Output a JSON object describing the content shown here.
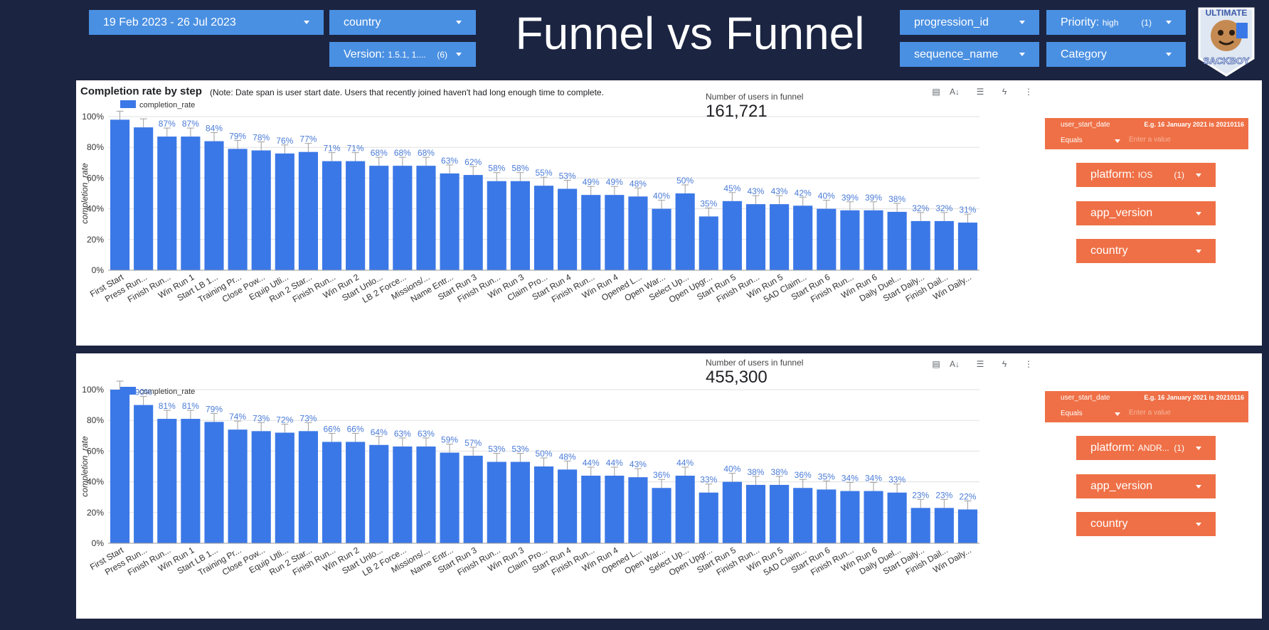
{
  "header": {
    "title": "Funnel vs Funnel",
    "date_range": "19 Feb 2023 - 26 Jul 2023",
    "country": "country",
    "version_label": "Version:",
    "version_value": "1.5.1, 1....",
    "version_count": "(6)",
    "progression_id": "progression_id",
    "sequence_name": "sequence_name",
    "priority_label": "Priority:",
    "priority_value": "high",
    "priority_count": "(1)",
    "category": "Category",
    "logo_text_1": "ULTIMATE",
    "logo_text_2": "SACKBOY"
  },
  "colors": {
    "background": "#1b2441",
    "blue_control": "#4a90e2",
    "bar": "#3b78e7",
    "orange_control": "#ef7046"
  },
  "panel1": {
    "title": "Completion rate by step",
    "note": "(Note: Date span is user start date. Users that recently joined haven't had long enough time to complete.",
    "users_label": "Number of users in funnel",
    "users_value": "161,721",
    "filter": {
      "field": "user_start_date",
      "hint": "E.g. 16 January 2021 is 20210116",
      "operator": "Equals",
      "placeholder": "Enter a value"
    },
    "platform_label": "platform:",
    "platform_value": "IOS",
    "platform_count": "(1)",
    "app_version": "app_version",
    "country": "country"
  },
  "panel2": {
    "users_label": "Number of users in funnel",
    "users_value": "455,300",
    "filter": {
      "field": "user_start_date",
      "hint": "E.g. 16 January 2021 is 20210116",
      "operator": "Equals",
      "placeholder": "Enter a value"
    },
    "platform_label": "platform:",
    "platform_value": "ANDR...",
    "platform_count": "(1)",
    "app_version": "app_version",
    "country": "country"
  },
  "chart_data": [
    {
      "type": "bar",
      "title": "",
      "ylabel": "completion_rate",
      "legend": [
        "completion_rate"
      ],
      "legend_position": "top-left",
      "ylim": [
        0,
        100
      ],
      "yticks": [
        "0%",
        "20%",
        "40%",
        "60%",
        "80%",
        "100%"
      ],
      "categories": [
        "First Start",
        "Press Run...",
        "Finish Run...",
        "Win Run 1",
        "Start LB 1...",
        "Training Pr...",
        "Close Pow...",
        "Equip Utli...",
        "Run 2 Star...",
        "Finish Run...",
        "Win Run 2",
        "Start Unlo...",
        "LB 2 Force...",
        "Missions/...",
        "Name Entr...",
        "Start Run 3",
        "Finish Run...",
        "Win Run 3",
        "Claim Pro...",
        "Start Run 4",
        "Finish Run...",
        "Win Run 4",
        "Opened L...",
        "Open War...",
        "Select Up...",
        "Open Upgr...",
        "Start Run 5",
        "Finish Run...",
        "Win Run 5",
        "5AD Claim...",
        "Start Run 6",
        "Finish Run...",
        "Win Run 6",
        "Daily Duel...",
        "Start Daily...",
        "Finish Dail...",
        "Win Daily..."
      ],
      "values": [
        98,
        93,
        87,
        87,
        84,
        79,
        78,
        76,
        77,
        71,
        71,
        68,
        68,
        68,
        63,
        62,
        58,
        58,
        55,
        53,
        49,
        49,
        48,
        40,
        50,
        35,
        45,
        43,
        43,
        42,
        40,
        39,
        39,
        38,
        32,
        32,
        31
      ],
      "labels": [
        "",
        "",
        "87%",
        "87%",
        "84%",
        "79%",
        "78%",
        "76%",
        "77%",
        "71%",
        "71%",
        "68%",
        "68%",
        "68%",
        "63%",
        "62%",
        "58%",
        "58%",
        "55%",
        "53%",
        "49%",
        "49%",
        "48%",
        "40%",
        "50%",
        "35%",
        "45%",
        "43%",
        "43%",
        "42%",
        "40%",
        "39%",
        "39%",
        "38%",
        "32%",
        "32%",
        "31%"
      ]
    },
    {
      "type": "bar",
      "title": "",
      "ylabel": "completion_rate",
      "legend": [
        "completion_rate"
      ],
      "legend_position": "top-left",
      "ylim": [
        0,
        100
      ],
      "yticks": [
        "0%",
        "20%",
        "40%",
        "60%",
        "80%",
        "100%"
      ],
      "categories": [
        "First Start",
        "Press Run...",
        "Finish Run...",
        "Win Run 1",
        "Start LB 1...",
        "Training Pr...",
        "Close Pow...",
        "Equip Utli...",
        "Run 2 Star...",
        "Finish Run...",
        "Win Run 2",
        "Start Unlo...",
        "LB 2 Force...",
        "Missions/...",
        "Name Entr...",
        "Start Run 3",
        "Finish Run...",
        "Win Run 3",
        "Claim Pro...",
        "Start Run 4",
        "Finish Run...",
        "Win Run 4",
        "Opened L...",
        "Open War...",
        "Select Up...",
        "Open Upgr...",
        "Start Run 5",
        "Finish Run...",
        "Win Run 5",
        "5AD Claim...",
        "Start Run 6",
        "Finish Run...",
        "Win Run 6",
        "Daily Duel...",
        "Start Daily...",
        "Finish Dail...",
        "Win Daily..."
      ],
      "values": [
        100,
        90,
        81,
        81,
        79,
        74,
        73,
        72,
        73,
        66,
        66,
        64,
        63,
        63,
        59,
        57,
        53,
        53,
        50,
        48,
        44,
        44,
        43,
        36,
        44,
        33,
        40,
        38,
        38,
        36,
        35,
        34,
        34,
        33,
        23,
        23,
        22
      ],
      "labels": [
        "",
        "90%",
        "81%",
        "81%",
        "79%",
        "74%",
        "73%",
        "72%",
        "73%",
        "66%",
        "66%",
        "64%",
        "63%",
        "63%",
        "59%",
        "57%",
        "53%",
        "53%",
        "50%",
        "48%",
        "44%",
        "44%",
        "43%",
        "36%",
        "44%",
        "33%",
        "40%",
        "38%",
        "38%",
        "36%",
        "35%",
        "34%",
        "34%",
        "33%",
        "23%",
        "23%",
        "22%"
      ]
    }
  ]
}
